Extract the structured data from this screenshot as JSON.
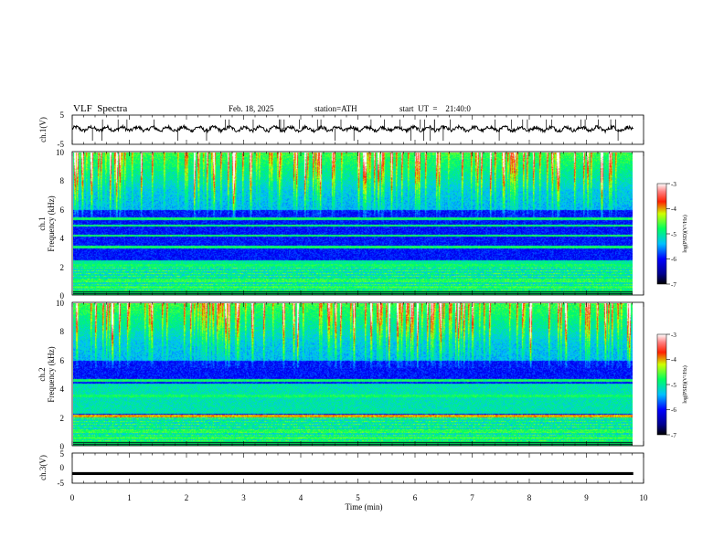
{
  "header": {
    "title": "VLF  Spectra",
    "date": "Feb. 18, 2025",
    "station": "station=ATH",
    "start": "start  UT  =    21:40:0"
  },
  "chart_data": [
    {
      "type": "line",
      "panel": "ch1-waveform",
      "ylabel": "ch.1(V)",
      "ylim": [
        -5,
        5
      ],
      "yticks": [
        "5",
        "-5"
      ],
      "xlim": [
        0,
        10
      ],
      "series_color": "#000000",
      "note_level": 0.3
    },
    {
      "type": "heatmap",
      "panel": "ch1-spectrogram",
      "ylabel": "Frequency  (kHz)",
      "ylabel2": "ch.1",
      "ylim": [
        0,
        10
      ],
      "yticks": [
        "0",
        "2",
        "4",
        "6",
        "8",
        "10"
      ],
      "xlim": [
        0,
        10
      ],
      "colorbar": {
        "label": "log(PSD)(V²/Hz)",
        "range": [
          -7,
          -3
        ],
        "ticks": [
          "-3",
          "-4",
          "-5",
          "-6",
          "-7"
        ]
      },
      "bands_khz": [
        0.6,
        1.0,
        2.1,
        3.4,
        4.2,
        4.9,
        5.4
      ],
      "data_end_min": 9.82
    },
    {
      "type": "heatmap",
      "panel": "ch2-spectrogram",
      "ylabel": "Frequency  (kHz)",
      "ylabel2": "ch.2",
      "ylim": [
        0,
        10
      ],
      "yticks": [
        "0",
        "2",
        "4",
        "6",
        "8",
        "10"
      ],
      "xlim": [
        0,
        10
      ],
      "colorbar": {
        "label": "log(PSD)(V²/Hz)",
        "range": [
          -7,
          -3
        ],
        "ticks": [
          "-3",
          "-4",
          "-5",
          "-6",
          "-7"
        ]
      },
      "bands_khz": [
        0.6,
        1.0,
        2.1,
        3.5,
        4.6
      ],
      "data_end_min": 9.82
    },
    {
      "type": "line",
      "panel": "ch3-waveform",
      "ylabel": "ch.3(V)",
      "ylim": [
        -5,
        5
      ],
      "yticks": [
        "5",
        "0",
        "-5"
      ],
      "xlim": [
        0,
        10
      ],
      "xlabel": "Time  (min)",
      "xticks": [
        "0",
        "1",
        "2",
        "3",
        "4",
        "5",
        "6",
        "7",
        "8",
        "9",
        "10"
      ],
      "series_color": "#000000",
      "level": -1.8,
      "data_end_min": 9.82
    }
  ]
}
